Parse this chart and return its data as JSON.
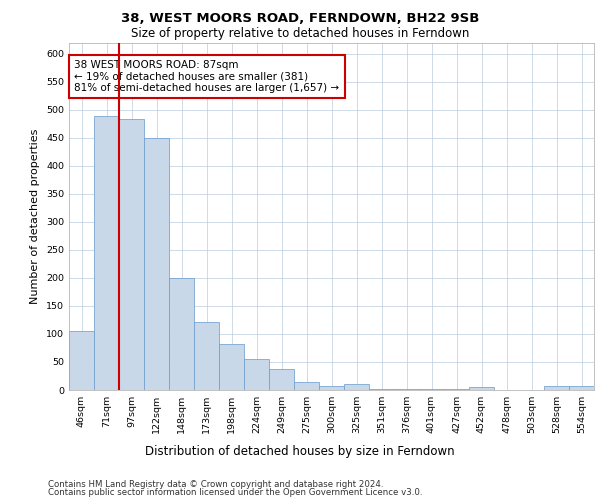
{
  "title1": "38, WEST MOORS ROAD, FERNDOWN, BH22 9SB",
  "title2": "Size of property relative to detached houses in Ferndown",
  "xlabel": "Distribution of detached houses by size in Ferndown",
  "ylabel": "Number of detached properties",
  "bar_color": "#c8d8e8",
  "bar_edge_color": "#6699cc",
  "categories": [
    "46sqm",
    "71sqm",
    "97sqm",
    "122sqm",
    "148sqm",
    "173sqm",
    "198sqm",
    "224sqm",
    "249sqm",
    "275sqm",
    "300sqm",
    "325sqm",
    "351sqm",
    "376sqm",
    "401sqm",
    "427sqm",
    "452sqm",
    "478sqm",
    "503sqm",
    "528sqm",
    "554sqm"
  ],
  "values": [
    105,
    488,
    483,
    450,
    200,
    122,
    82,
    55,
    37,
    14,
    8,
    10,
    1,
    1,
    1,
    1,
    5,
    0,
    0,
    7,
    7
  ],
  "vline_x": 1.5,
  "vline_color": "#cc0000",
  "annotation_text": "38 WEST MOORS ROAD: 87sqm\n← 19% of detached houses are smaller (381)\n81% of semi-detached houses are larger (1,657) →",
  "annotation_box_color": "#ffffff",
  "annotation_box_edge": "#cc0000",
  "ylim": [
    0,
    620
  ],
  "yticks": [
    0,
    50,
    100,
    150,
    200,
    250,
    300,
    350,
    400,
    450,
    500,
    550,
    600
  ],
  "footer1": "Contains HM Land Registry data © Crown copyright and database right 2024.",
  "footer2": "Contains public sector information licensed under the Open Government Licence v3.0."
}
